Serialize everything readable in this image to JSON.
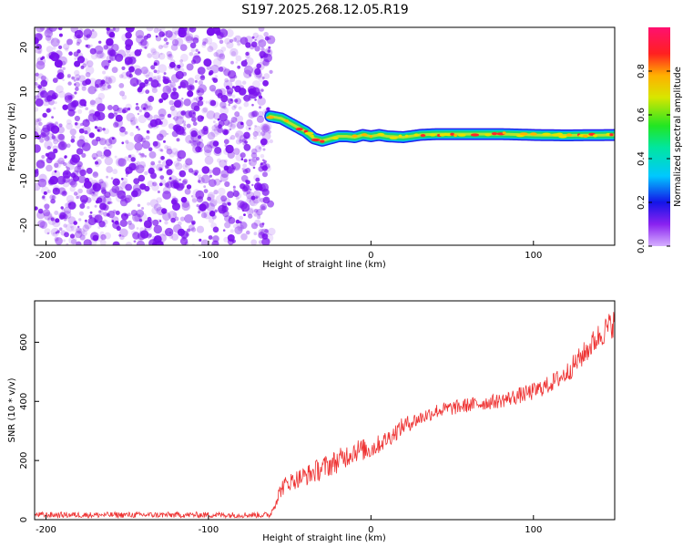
{
  "figure_title": "S197.2025.268.12.05.R19",
  "chart_data": [
    {
      "type": "heatmap",
      "title": "S197.2025.268.12.05.R19",
      "xlabel": "Height of straight line (km)",
      "ylabel": "Frequency (Hz)",
      "xlim": [
        -207,
        150
      ],
      "ylim": [
        -24.5,
        24.5
      ],
      "xticks": [
        -200,
        -100,
        0,
        100
      ],
      "xtick_labels": [
        "-200",
        "-100",
        "0",
        "100"
      ],
      "yticks": [
        -20,
        -10,
        0,
        10,
        20
      ],
      "ytick_labels": [
        "-20",
        "-10",
        "0",
        "10",
        "20"
      ],
      "noise_region_x": [
        -207,
        -61
      ],
      "noise_color": "#7a10ee",
      "signal_track": {
        "x": [
          -62,
          -55,
          -50,
          -45,
          -40,
          -35,
          -30,
          -25,
          -20,
          -15,
          -10,
          -5,
          0,
          5,
          10,
          20,
          30,
          40,
          60,
          80,
          100,
          120,
          150
        ],
        "freq": [
          4.5,
          4.0,
          3.0,
          2.0,
          1.0,
          -0.5,
          -1.0,
          -0.5,
          0.0,
          0.0,
          -0.2,
          0.3,
          0.0,
          0.3,
          0.0,
          -0.2,
          0.3,
          0.5,
          0.5,
          0.5,
          0.3,
          0.2,
          0.3
        ]
      },
      "colorbar": {
        "label": "Normalized spectral amplitude",
        "range": [
          0.0,
          1.0
        ],
        "ticks": [
          0.0,
          0.2,
          0.4,
          0.6,
          0.8
        ],
        "tick_labels": [
          "0.0",
          "0.2",
          "0.4",
          "0.6",
          "0.8"
        ]
      }
    },
    {
      "type": "line",
      "xlabel": "Height of straight line (km)",
      "ylabel": "SNR (10 * v/v)",
      "xlim": [
        -207,
        150
      ],
      "ylim": [
        0,
        740
      ],
      "xticks": [
        -200,
        -100,
        0,
        100
      ],
      "xtick_labels": [
        "-200",
        "-100",
        "0",
        "100"
      ],
      "yticks": [
        0,
        200,
        400,
        600
      ],
      "ytick_labels": [
        "0",
        "200",
        "400",
        "600"
      ],
      "series": [
        {
          "name": "SNR",
          "color": "#ee3333",
          "x": [
            -207,
            -100,
            -62,
            -55,
            -50,
            -40,
            -30,
            -20,
            -10,
            0,
            10,
            20,
            30,
            40,
            50,
            60,
            80,
            100,
            110,
            120,
            130,
            140,
            150
          ],
          "y": [
            15,
            15,
            15,
            105,
            125,
            145,
            170,
            195,
            230,
            235,
            270,
            315,
            340,
            365,
            375,
            385,
            400,
            430,
            455,
            490,
            550,
            615,
            665
          ],
          "noise_amplitude": [
            10,
            10,
            10,
            30,
            30,
            35,
            40,
            40,
            40,
            35,
            30,
            30,
            25,
            25,
            25,
            25,
            25,
            30,
            30,
            35,
            40,
            45,
            50
          ]
        }
      ]
    }
  ]
}
